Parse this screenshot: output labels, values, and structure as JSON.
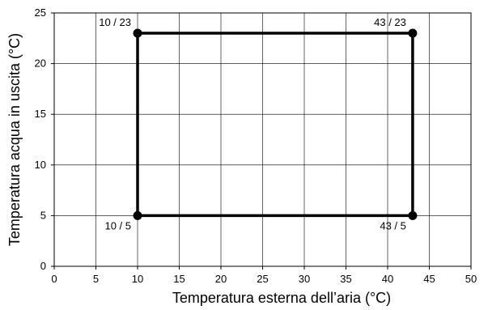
{
  "chart_data": {
    "type": "line",
    "xlabel": "Temperatura esterna dell’aria  (°C)",
    "ylabel": "Temperatura acqua in uscita (°C)",
    "xlim": [
      0,
      50
    ],
    "ylim": [
      0,
      25
    ],
    "x_ticks": [
      0,
      5,
      10,
      15,
      20,
      25,
      30,
      35,
      40,
      45,
      50
    ],
    "y_ticks": [
      0,
      5,
      10,
      15,
      20,
      25
    ],
    "grid": true,
    "series": [
      {
        "closed": true,
        "x": [
          10,
          43,
          43,
          10
        ],
        "y": [
          23,
          23,
          5,
          5
        ],
        "color": "#000000"
      }
    ],
    "annotations": [
      {
        "text": "10 / 23",
        "x": 10,
        "y": 23,
        "placement": "upper-left"
      },
      {
        "text": "43 / 23",
        "x": 43,
        "y": 23,
        "placement": "upper-left"
      },
      {
        "text": "10 / 5",
        "x": 10,
        "y": 5,
        "placement": "lower-left"
      },
      {
        "text": "43 / 5",
        "x": 43,
        "y": 5,
        "placement": "lower-left"
      }
    ]
  }
}
